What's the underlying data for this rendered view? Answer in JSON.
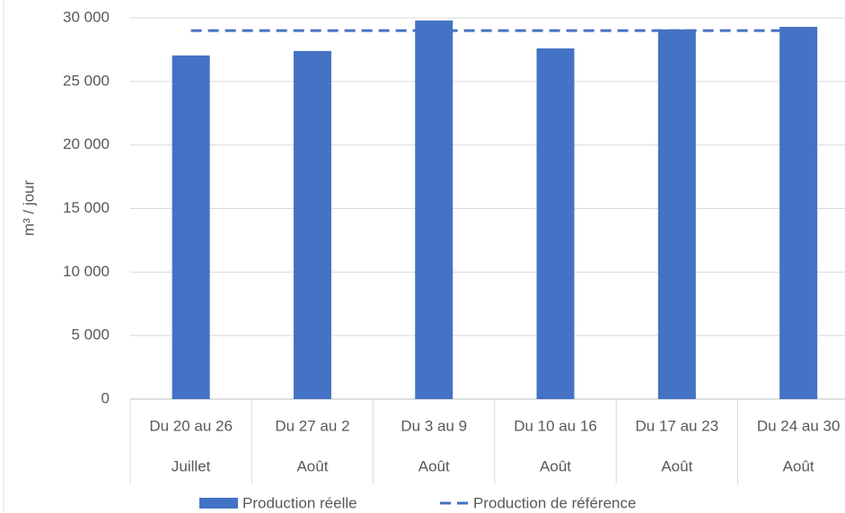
{
  "chart_data": {
    "type": "bar",
    "y_label": "m³ / jour",
    "categories": [
      "Du 20 au 26",
      "Du 27 au 2",
      "Du 3 au 9",
      "Du 10 au 16",
      "Du 17 au 23",
      "Du 24 au 30"
    ],
    "groups": [
      "Juillet",
      "Août",
      "Août",
      "Août",
      "Août",
      "Août"
    ],
    "series": [
      {
        "name": "Production réelle",
        "type": "bar",
        "color": "#4472c4",
        "values": [
          27050,
          27400,
          29800,
          27600,
          29100,
          29300
        ]
      },
      {
        "name": "Production de référence",
        "type": "line",
        "style": "dashed",
        "color": "#4472c4",
        "values": [
          29000,
          29000,
          29000,
          29000,
          29000,
          29000
        ]
      }
    ],
    "ylim": [
      0,
      30000
    ],
    "yticks": [
      0,
      {
        "value": 5000,
        "label": "5 000"
      },
      {
        "value": 10000,
        "label": "10 000"
      },
      {
        "value": 15000,
        "label": "15 000"
      },
      {
        "value": 20000,
        "label": "20 000"
      },
      {
        "value": 25000,
        "label": "25 000"
      },
      {
        "value": 30000,
        "label": "30 000"
      }
    ],
    "grid": true,
    "legend": "bottom"
  }
}
